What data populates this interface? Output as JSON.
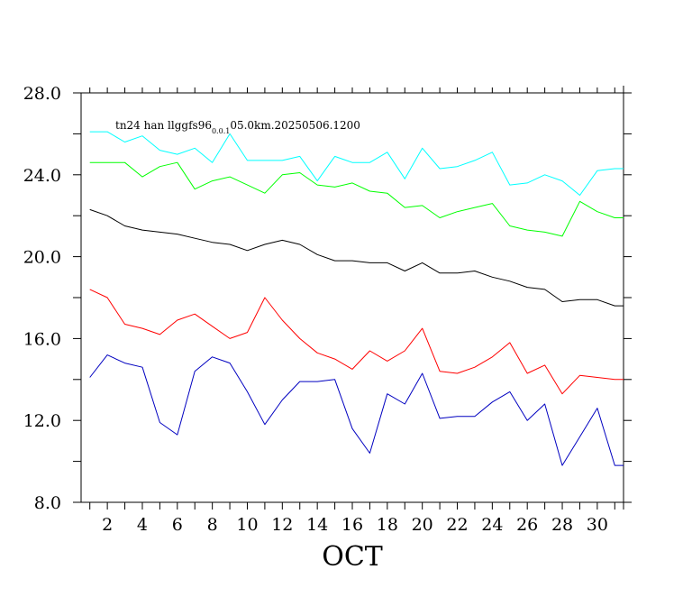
{
  "chart_data": {
    "type": "line",
    "title": {
      "prefix": "tn24 han llggfs96",
      "subscript": "0.0.1",
      "suffix": "05.0km.20250506.1200"
    },
    "xlabel": "OCT",
    "ylabel": "",
    "xlim": [
      0.5,
      31.5
    ],
    "ylim": [
      8.0,
      28.0
    ],
    "x_ticks": [
      2,
      4,
      6,
      8,
      10,
      12,
      14,
      16,
      18,
      20,
      22,
      24,
      26,
      28,
      30
    ],
    "x_tick_labels": [
      "2",
      "4",
      "6",
      "8",
      "10",
      "12",
      "14",
      "16",
      "18",
      "20",
      "22",
      "24",
      "26",
      "28",
      "30"
    ],
    "y_ticks": [
      8.0,
      12.0,
      16.0,
      20.0,
      24.0,
      28.0
    ],
    "y_tick_labels": [
      "8.0",
      "12.0",
      "16.0",
      "20.0",
      "24.0",
      "28.0"
    ],
    "y_minor_ticks": [
      10,
      14,
      18,
      22,
      26
    ],
    "grid": false,
    "x": [
      1,
      2,
      3,
      4,
      5,
      6,
      7,
      8,
      9,
      10,
      11,
      12,
      13,
      14,
      15,
      16,
      17,
      18,
      19,
      20,
      21,
      22,
      23,
      24,
      25,
      26,
      27,
      28,
      29,
      30,
      31,
      32
    ],
    "series": [
      {
        "color": "#00ffff",
        "values": [
          26.1,
          26.1,
          25.6,
          25.9,
          25.2,
          25.0,
          25.3,
          24.6,
          26.0,
          24.7,
          24.7,
          24.7,
          24.9,
          23.7,
          24.9,
          24.6,
          24.6,
          25.1,
          23.8,
          25.3,
          24.3,
          24.4,
          24.7,
          25.1,
          23.5,
          23.6,
          24.0,
          23.7,
          23.0,
          24.2,
          24.3,
          24.3
        ]
      },
      {
        "color": "#00ff00",
        "values": [
          24.6,
          24.6,
          24.6,
          23.9,
          24.4,
          24.6,
          23.3,
          23.7,
          23.9,
          23.5,
          23.1,
          24.0,
          24.1,
          23.5,
          23.4,
          23.6,
          23.2,
          23.1,
          22.4,
          22.5,
          21.9,
          22.2,
          22.4,
          22.6,
          21.5,
          21.3,
          21.2,
          21.0,
          22.7,
          22.2,
          21.9,
          21.9
        ]
      },
      {
        "color": "#000000",
        "values": [
          22.3,
          22.0,
          21.5,
          21.3,
          21.2,
          21.1,
          20.9,
          20.7,
          20.6,
          20.3,
          20.6,
          20.8,
          20.6,
          20.1,
          19.8,
          19.8,
          19.7,
          19.7,
          19.3,
          19.7,
          19.2,
          19.2,
          19.3,
          19.0,
          18.8,
          18.5,
          18.4,
          17.8,
          17.9,
          17.9,
          17.6,
          17.6
        ]
      },
      {
        "color": "#ff0000",
        "values": [
          18.4,
          18.0,
          16.7,
          16.5,
          16.2,
          16.9,
          17.2,
          16.6,
          16.0,
          16.3,
          18.0,
          16.9,
          16.0,
          15.3,
          15.0,
          14.5,
          15.4,
          14.9,
          15.4,
          16.5,
          14.4,
          14.3,
          14.6,
          15.1,
          15.8,
          14.3,
          14.7,
          13.3,
          14.2,
          14.1,
          14.0,
          14.0
        ]
      },
      {
        "color": "#0000c0",
        "values": [
          14.1,
          15.2,
          14.8,
          14.6,
          11.9,
          11.3,
          14.4,
          15.1,
          14.8,
          13.4,
          11.8,
          13.0,
          13.9,
          13.9,
          14.0,
          11.6,
          10.4,
          13.3,
          12.8,
          14.3,
          12.1,
          12.2,
          12.2,
          12.9,
          13.4,
          12.0,
          12.8,
          9.8,
          11.2,
          12.6,
          9.8,
          9.8
        ]
      }
    ]
  }
}
